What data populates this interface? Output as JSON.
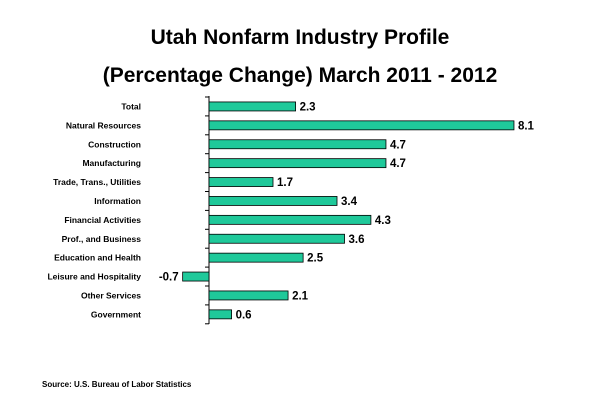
{
  "chart_data": {
    "type": "bar",
    "orientation": "horizontal",
    "title": "Utah Nonfarm Industry Profile",
    "subtitle": "(Percentage Change) March 2011 - 2012",
    "categories": [
      "Total",
      "Natural Resources",
      "Construction",
      "Manufacturing",
      "Trade, Trans., Utilities",
      "Information",
      "Financial Activities",
      "Prof., and Business",
      "Education and Health",
      "Leisure and Hospitality",
      "Other Services",
      "Government"
    ],
    "values": [
      2.3,
      8.1,
      4.7,
      4.7,
      1.7,
      3.4,
      4.3,
      3.6,
      2.5,
      -0.7,
      2.1,
      0.6
    ],
    "data_labels": [
      "2.3",
      "8.1",
      "4.7",
      "4.7",
      "1.7",
      "3.4",
      "4.3",
      "3.6",
      "2.5",
      "-0.7",
      "2.1",
      "0.6"
    ],
    "bar_color": "#1fc99a",
    "xlim": [
      -1,
      8.5
    ],
    "grid": false,
    "legend": "none"
  },
  "source": "Source: U.S. Bureau of Labor Statistics"
}
